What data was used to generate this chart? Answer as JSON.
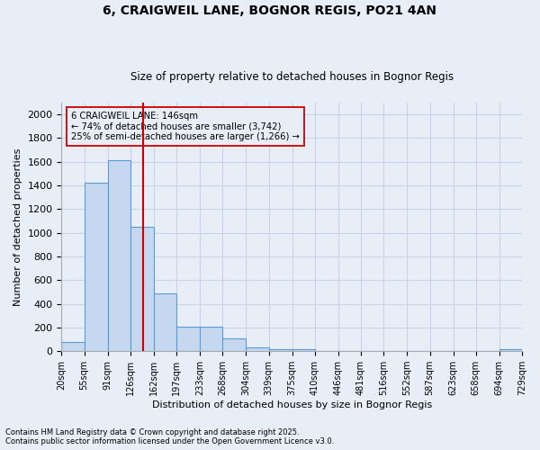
{
  "title": "6, CRAIGWEIL LANE, BOGNOR REGIS, PO21 4AN",
  "subtitle": "Size of property relative to detached houses in Bognor Regis",
  "xlabel": "Distribution of detached houses by size in Bognor Regis",
  "ylabel": "Number of detached properties",
  "bar_edges": [
    20,
    55,
    91,
    126,
    162,
    197,
    233,
    268,
    304,
    339,
    375,
    410,
    446,
    481,
    516,
    552,
    587,
    623,
    658,
    694,
    729
  ],
  "bar_heights": [
    75,
    1420,
    1610,
    1050,
    490,
    205,
    205,
    105,
    35,
    15,
    15,
    5,
    5,
    0,
    0,
    0,
    0,
    0,
    0,
    20
  ],
  "bar_color": "#c5d8f0",
  "bar_edgecolor": "#5b9bd5",
  "property_size": 146,
  "vline_color": "#cc0000",
  "annotation_text": "6 CRAIGWEIL LANE: 146sqm\n← 74% of detached houses are smaller (3,742)\n25% of semi-detached houses are larger (1,266) →",
  "annotation_box_edgecolor": "#cc0000",
  "ylim": [
    0,
    2100
  ],
  "background_color": "#e8eef8",
  "grid_color": "#c8d4e8",
  "footnote": "Contains HM Land Registry data © Crown copyright and database right 2025.\nContains public sector information licensed under the Open Government Licence v3.0.",
  "tick_labels": [
    "20sqm",
    "55sqm",
    "91sqm",
    "126sqm",
    "162sqm",
    "197sqm",
    "233sqm",
    "268sqm",
    "304sqm",
    "339sqm",
    "375sqm",
    "410sqm",
    "446sqm",
    "481sqm",
    "516sqm",
    "552sqm",
    "587sqm",
    "623sqm",
    "658sqm",
    "694sqm",
    "729sqm"
  ],
  "yticks": [
    0,
    200,
    400,
    600,
    800,
    1000,
    1200,
    1400,
    1600,
    1800,
    2000
  ]
}
